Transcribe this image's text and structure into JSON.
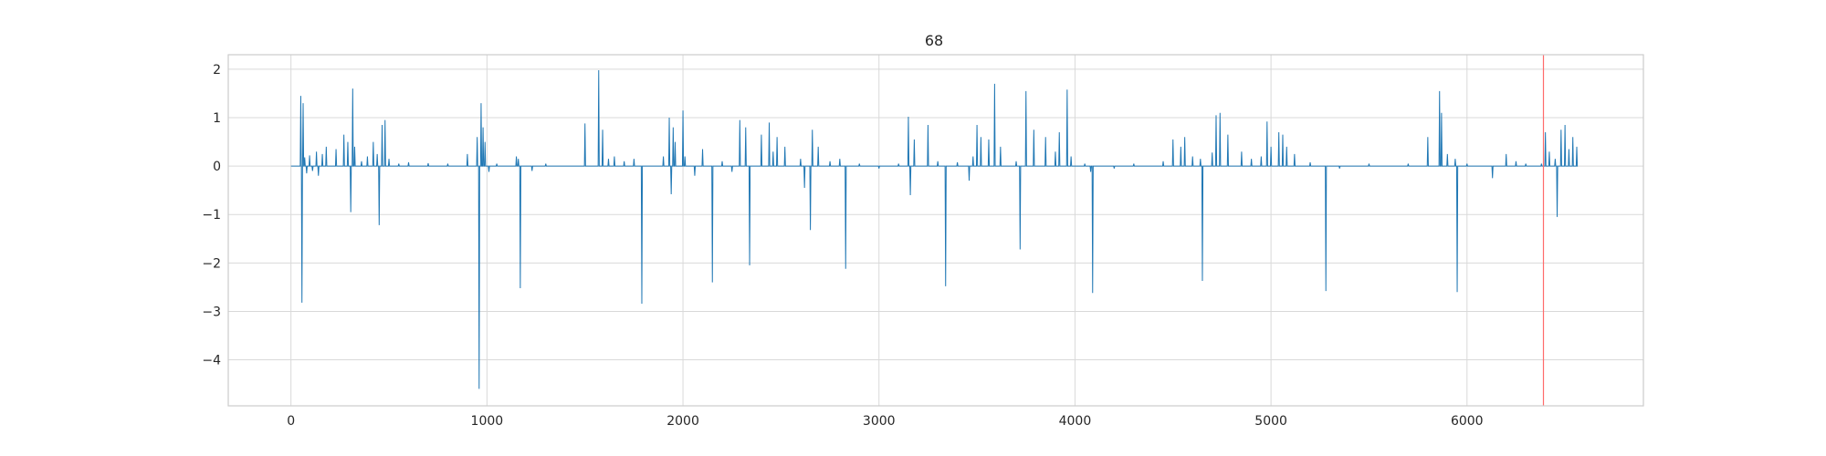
{
  "chart_data": {
    "type": "line",
    "title": "68",
    "xlabel": "",
    "ylabel": "",
    "xlim": [
      -320,
      6900
    ],
    "ylim": [
      -4.95,
      2.3
    ],
    "grid": true,
    "legend": "none",
    "x_ticks": [
      0,
      1000,
      2000,
      3000,
      4000,
      5000,
      6000
    ],
    "y_ticks": [
      -4,
      -3,
      -2,
      -1,
      0,
      1,
      2
    ],
    "x_tick_labels": [
      "0",
      "1000",
      "2000",
      "3000",
      "4000",
      "5000",
      "6000"
    ],
    "y_tick_labels": [
      "−4",
      "−3",
      "−2",
      "−1",
      "0",
      "1",
      "2"
    ],
    "vline": {
      "x": 6390,
      "color": "#ff6b6b"
    },
    "series": [
      {
        "color": "#1f77b4",
        "x_start": 0,
        "x_end": 6560,
        "spikes": [
          [
            50,
            1.45
          ],
          [
            56,
            -2.82
          ],
          [
            62,
            1.3
          ],
          [
            70,
            0.18
          ],
          [
            80,
            -0.15
          ],
          [
            95,
            0.22
          ],
          [
            110,
            -0.1
          ],
          [
            130,
            0.3
          ],
          [
            140,
            -0.2
          ],
          [
            160,
            0.25
          ],
          [
            180,
            0.4
          ],
          [
            230,
            0.35
          ],
          [
            270,
            0.65
          ],
          [
            290,
            0.5
          ],
          [
            305,
            -0.95
          ],
          [
            315,
            1.6
          ],
          [
            325,
            0.4
          ],
          [
            360,
            0.1
          ],
          [
            390,
            0.2
          ],
          [
            420,
            0.5
          ],
          [
            440,
            0.25
          ],
          [
            450,
            -1.22
          ],
          [
            465,
            0.85
          ],
          [
            480,
            0.95
          ],
          [
            500,
            0.15
          ],
          [
            550,
            0.05
          ],
          [
            600,
            0.08
          ],
          [
            700,
            0.06
          ],
          [
            800,
            0.05
          ],
          [
            900,
            0.25
          ],
          [
            950,
            0.6
          ],
          [
            960,
            -4.6
          ],
          [
            970,
            1.3
          ],
          [
            980,
            0.8
          ],
          [
            990,
            0.5
          ],
          [
            1010,
            -0.12
          ],
          [
            1050,
            0.05
          ],
          [
            1150,
            0.2
          ],
          [
            1160,
            0.15
          ],
          [
            1170,
            -2.52
          ],
          [
            1230,
            -0.1
          ],
          [
            1300,
            0.05
          ],
          [
            1500,
            0.88
          ],
          [
            1570,
            1.98
          ],
          [
            1590,
            0.75
          ],
          [
            1620,
            0.15
          ],
          [
            1650,
            0.2
          ],
          [
            1700,
            0.1
          ],
          [
            1750,
            0.15
          ],
          [
            1790,
            -2.84
          ],
          [
            1900,
            0.2
          ],
          [
            1930,
            1.0
          ],
          [
            1940,
            -0.58
          ],
          [
            1950,
            0.8
          ],
          [
            1960,
            0.5
          ],
          [
            2000,
            1.15
          ],
          [
            2010,
            0.2
          ],
          [
            2060,
            -0.2
          ],
          [
            2100,
            0.35
          ],
          [
            2150,
            -2.4
          ],
          [
            2200,
            0.1
          ],
          [
            2250,
            -0.12
          ],
          [
            2290,
            0.95
          ],
          [
            2320,
            0.8
          ],
          [
            2340,
            -2.05
          ],
          [
            2400,
            0.65
          ],
          [
            2440,
            0.9
          ],
          [
            2460,
            0.3
          ],
          [
            2480,
            0.6
          ],
          [
            2520,
            0.4
          ],
          [
            2600,
            0.15
          ],
          [
            2620,
            -0.45
          ],
          [
            2650,
            -1.32
          ],
          [
            2660,
            0.75
          ],
          [
            2690,
            0.4
          ],
          [
            2750,
            0.1
          ],
          [
            2800,
            0.15
          ],
          [
            2830,
            -2.12
          ],
          [
            2900,
            0.05
          ],
          [
            3000,
            -0.05
          ],
          [
            3100,
            0.05
          ],
          [
            3150,
            1.02
          ],
          [
            3160,
            -0.6
          ],
          [
            3180,
            0.55
          ],
          [
            3250,
            0.85
          ],
          [
            3300,
            0.1
          ],
          [
            3340,
            -2.48
          ],
          [
            3400,
            0.08
          ],
          [
            3460,
            -0.3
          ],
          [
            3480,
            0.2
          ],
          [
            3500,
            0.85
          ],
          [
            3520,
            0.6
          ],
          [
            3560,
            0.55
          ],
          [
            3590,
            1.7
          ],
          [
            3620,
            0.4
          ],
          [
            3700,
            0.1
          ],
          [
            3720,
            -1.72
          ],
          [
            3750,
            1.55
          ],
          [
            3790,
            0.75
          ],
          [
            3850,
            0.6
          ],
          [
            3900,
            0.3
          ],
          [
            3920,
            0.7
          ],
          [
            3960,
            1.58
          ],
          [
            3980,
            0.2
          ],
          [
            4050,
            0.05
          ],
          [
            4080,
            -0.12
          ],
          [
            4090,
            -2.62
          ],
          [
            4200,
            -0.05
          ],
          [
            4300,
            0.05
          ],
          [
            4450,
            0.1
          ],
          [
            4500,
            0.55
          ],
          [
            4540,
            0.4
          ],
          [
            4560,
            0.6
          ],
          [
            4600,
            0.2
          ],
          [
            4640,
            0.15
          ],
          [
            4650,
            -2.37
          ],
          [
            4700,
            0.28
          ],
          [
            4720,
            1.05
          ],
          [
            4740,
            1.1
          ],
          [
            4780,
            0.65
          ],
          [
            4850,
            0.3
          ],
          [
            4900,
            0.15
          ],
          [
            4950,
            0.2
          ],
          [
            4980,
            0.92
          ],
          [
            5000,
            0.4
          ],
          [
            5040,
            0.7
          ],
          [
            5060,
            0.65
          ],
          [
            5080,
            0.4
          ],
          [
            5120,
            0.25
          ],
          [
            5200,
            0.08
          ],
          [
            5280,
            -2.58
          ],
          [
            5350,
            -0.05
          ],
          [
            5500,
            0.05
          ],
          [
            5700,
            0.05
          ],
          [
            5800,
            0.6
          ],
          [
            5860,
            1.55
          ],
          [
            5870,
            1.1
          ],
          [
            5900,
            0.25
          ],
          [
            5940,
            0.15
          ],
          [
            5950,
            -2.6
          ],
          [
            6000,
            0.05
          ],
          [
            6130,
            -0.25
          ],
          [
            6200,
            0.25
          ],
          [
            6250,
            0.1
          ],
          [
            6300,
            0.05
          ],
          [
            6380,
            0.05
          ],
          [
            6400,
            0.7
          ],
          [
            6420,
            0.3
          ],
          [
            6450,
            0.15
          ],
          [
            6460,
            -1.05
          ],
          [
            6480,
            0.75
          ],
          [
            6500,
            0.85
          ],
          [
            6520,
            0.35
          ],
          [
            6540,
            0.6
          ],
          [
            6560,
            0.4
          ]
        ]
      }
    ]
  }
}
